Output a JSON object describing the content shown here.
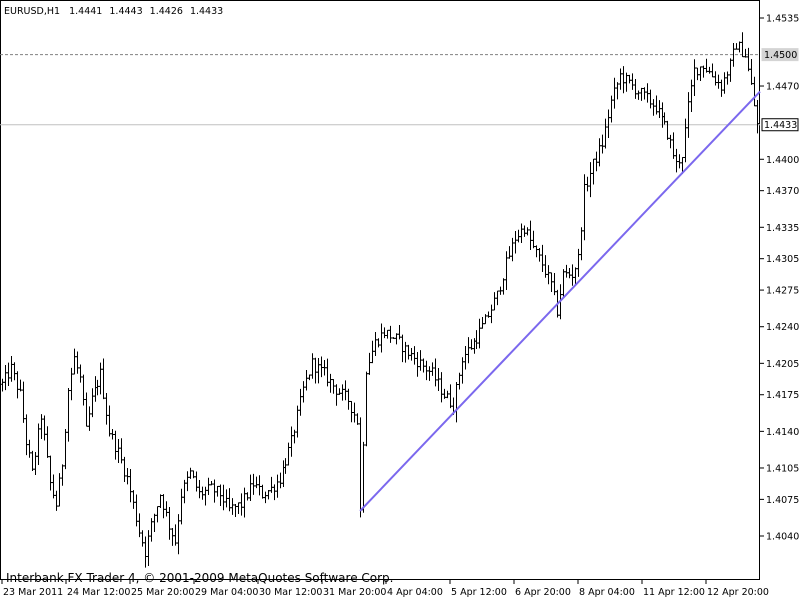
{
  "window_header": {
    "symbol": "EURUSD,H1",
    "open": "1.4441",
    "high": "1.4443",
    "low": "1.4426",
    "close": "1.4433"
  },
  "footer_text": "Interbank FX Trader 4, © 2001-2009 MetaQuotes Software Corp.",
  "colors": {
    "background": "#ffffff",
    "bars": "#000000",
    "grid": "#c0c0c0",
    "trendline": "#7b68ee"
  },
  "chart_data": {
    "type": "ohlc",
    "symbol": "EURUSD",
    "timeframe": "H1",
    "y_ticks": [
      "1.4535",
      "1.4470",
      "1.4400",
      "1.4370",
      "1.4335",
      "1.4305",
      "1.4275",
      "1.4240",
      "1.4205",
      "1.4175",
      "1.4140",
      "1.4105",
      "1.4075",
      "1.4040"
    ],
    "x_ticks": [
      "23 Mar 2011",
      "24 Mar 12:00",
      "25 Mar 20:00",
      "29 Mar 04:00",
      "30 Mar 12:00",
      "31 Mar 20:00",
      "4 Apr 04:00",
      "5 Apr 12:00",
      "6 Apr 20:00",
      "8 Apr 04:00",
      "11 Apr 12:00",
      "12 Apr 20:00"
    ],
    "ylim": [
      1.4,
      1.455
    ],
    "reference_lines": [
      {
        "value": 1.45,
        "label": "1.4500",
        "style": "dashed"
      },
      {
        "value": 1.4433,
        "label": "1.4433",
        "style": "solid"
      }
    ],
    "trendline": [
      {
        "bar": 120,
        "price": 1.4064
      },
      {
        "bar": 253,
        "price": 1.4459
      }
    ],
    "price_path": [
      [
        0,
        1.4185
      ],
      [
        3,
        1.42
      ],
      [
        6,
        1.4175
      ],
      [
        8,
        1.413
      ],
      [
        10,
        1.41
      ],
      [
        13,
        1.4155
      ],
      [
        16,
        1.409
      ],
      [
        18,
        1.407
      ],
      [
        20,
        1.411
      ],
      [
        22,
        1.418
      ],
      [
        24,
        1.421
      ],
      [
        26,
        1.419
      ],
      [
        28,
        1.414
      ],
      [
        30,
        1.417
      ],
      [
        33,
        1.4195
      ],
      [
        36,
        1.414
      ],
      [
        39,
        1.412
      ],
      [
        42,
        1.4095
      ],
      [
        44,
        1.407
      ],
      [
        46,
        1.4045
      ],
      [
        48,
        1.4025
      ],
      [
        50,
        1.405
      ],
      [
        53,
        1.408
      ],
      [
        56,
        1.405
      ],
      [
        58,
        1.4035
      ],
      [
        60,
        1.408
      ],
      [
        63,
        1.41
      ],
      [
        66,
        1.408
      ],
      [
        70,
        1.4085
      ],
      [
        73,
        1.408
      ],
      [
        76,
        1.4065
      ],
      [
        80,
        1.407
      ],
      [
        84,
        1.409
      ],
      [
        87,
        1.408
      ],
      [
        90,
        1.4085
      ],
      [
        93,
        1.4095
      ],
      [
        97,
        1.413
      ],
      [
        101,
        1.418
      ],
      [
        104,
        1.4205
      ],
      [
        108,
        1.4195
      ],
      [
        112,
        1.418
      ],
      [
        116,
        1.417
      ],
      [
        119,
        1.415
      ],
      [
        120,
        1.4064
      ],
      [
        122,
        1.42
      ],
      [
        125,
        1.4225
      ],
      [
        128,
        1.4235
      ],
      [
        132,
        1.4228
      ],
      [
        136,
        1.4215
      ],
      [
        140,
        1.4205
      ],
      [
        144,
        1.4195
      ],
      [
        148,
        1.4175
      ],
      [
        151,
        1.4165
      ],
      [
        154,
        1.421
      ],
      [
        158,
        1.4225
      ],
      [
        162,
        1.4245
      ],
      [
        166,
        1.427
      ],
      [
        169,
        1.43
      ],
      [
        172,
        1.4325
      ],
      [
        175,
        1.4335
      ],
      [
        178,
        1.4315
      ],
      [
        181,
        1.43
      ],
      [
        184,
        1.428
      ],
      [
        186,
        1.4255
      ],
      [
        188,
        1.429
      ],
      [
        191,
        1.429
      ],
      [
        193,
        1.4305
      ],
      [
        195,
        1.437
      ],
      [
        198,
        1.4395
      ],
      [
        201,
        1.4415
      ],
      [
        204,
        1.4455
      ],
      [
        207,
        1.448
      ],
      [
        211,
        1.447
      ],
      [
        215,
        1.446
      ],
      [
        219,
        1.445
      ],
      [
        223,
        1.4425
      ],
      [
        226,
        1.4395
      ],
      [
        228,
        1.4405
      ],
      [
        230,
        1.445
      ],
      [
        232,
        1.4485
      ],
      [
        235,
        1.449
      ],
      [
        238,
        1.448
      ],
      [
        241,
        1.447
      ],
      [
        244,
        1.449
      ],
      [
        246,
        1.451
      ],
      [
        249,
        1.45
      ],
      [
        251,
        1.447
      ],
      [
        253,
        1.4433
      ]
    ]
  }
}
